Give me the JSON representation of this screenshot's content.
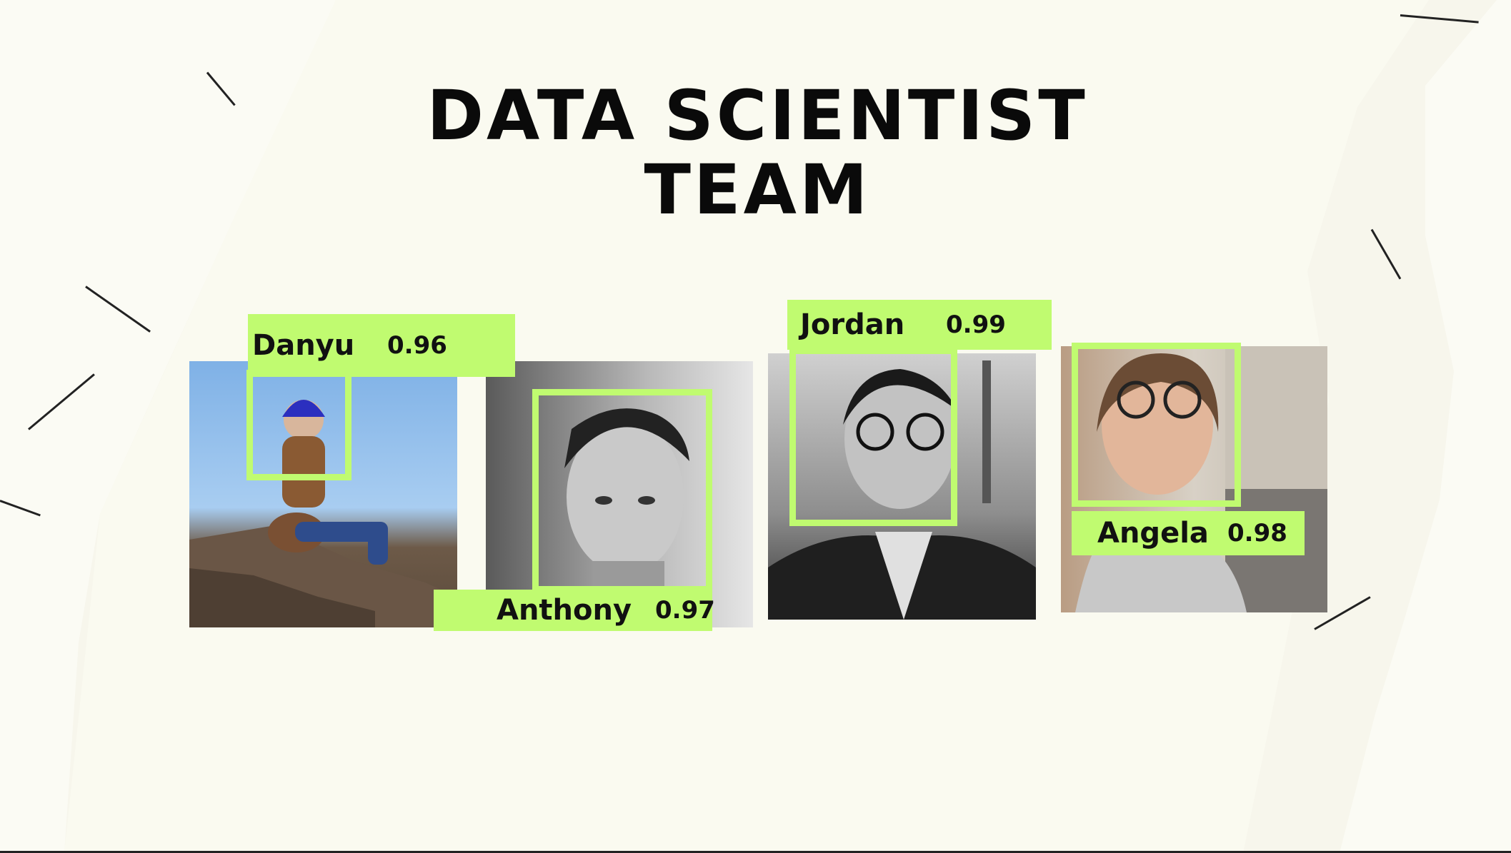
{
  "slide": {
    "title_line1": "DATA SCIENTIST",
    "title_line2": "TEAM"
  },
  "team": [
    {
      "name": "Danyu",
      "score": "0.96"
    },
    {
      "name": "Anthony",
      "score": "0.97"
    },
    {
      "name": "Jordan",
      "score": "0.99"
    },
    {
      "name": "Angela",
      "score": "0.98"
    }
  ],
  "colors": {
    "label_green": "#c0fb70",
    "background": "#fafaf0",
    "title": "#0a0a0a"
  }
}
